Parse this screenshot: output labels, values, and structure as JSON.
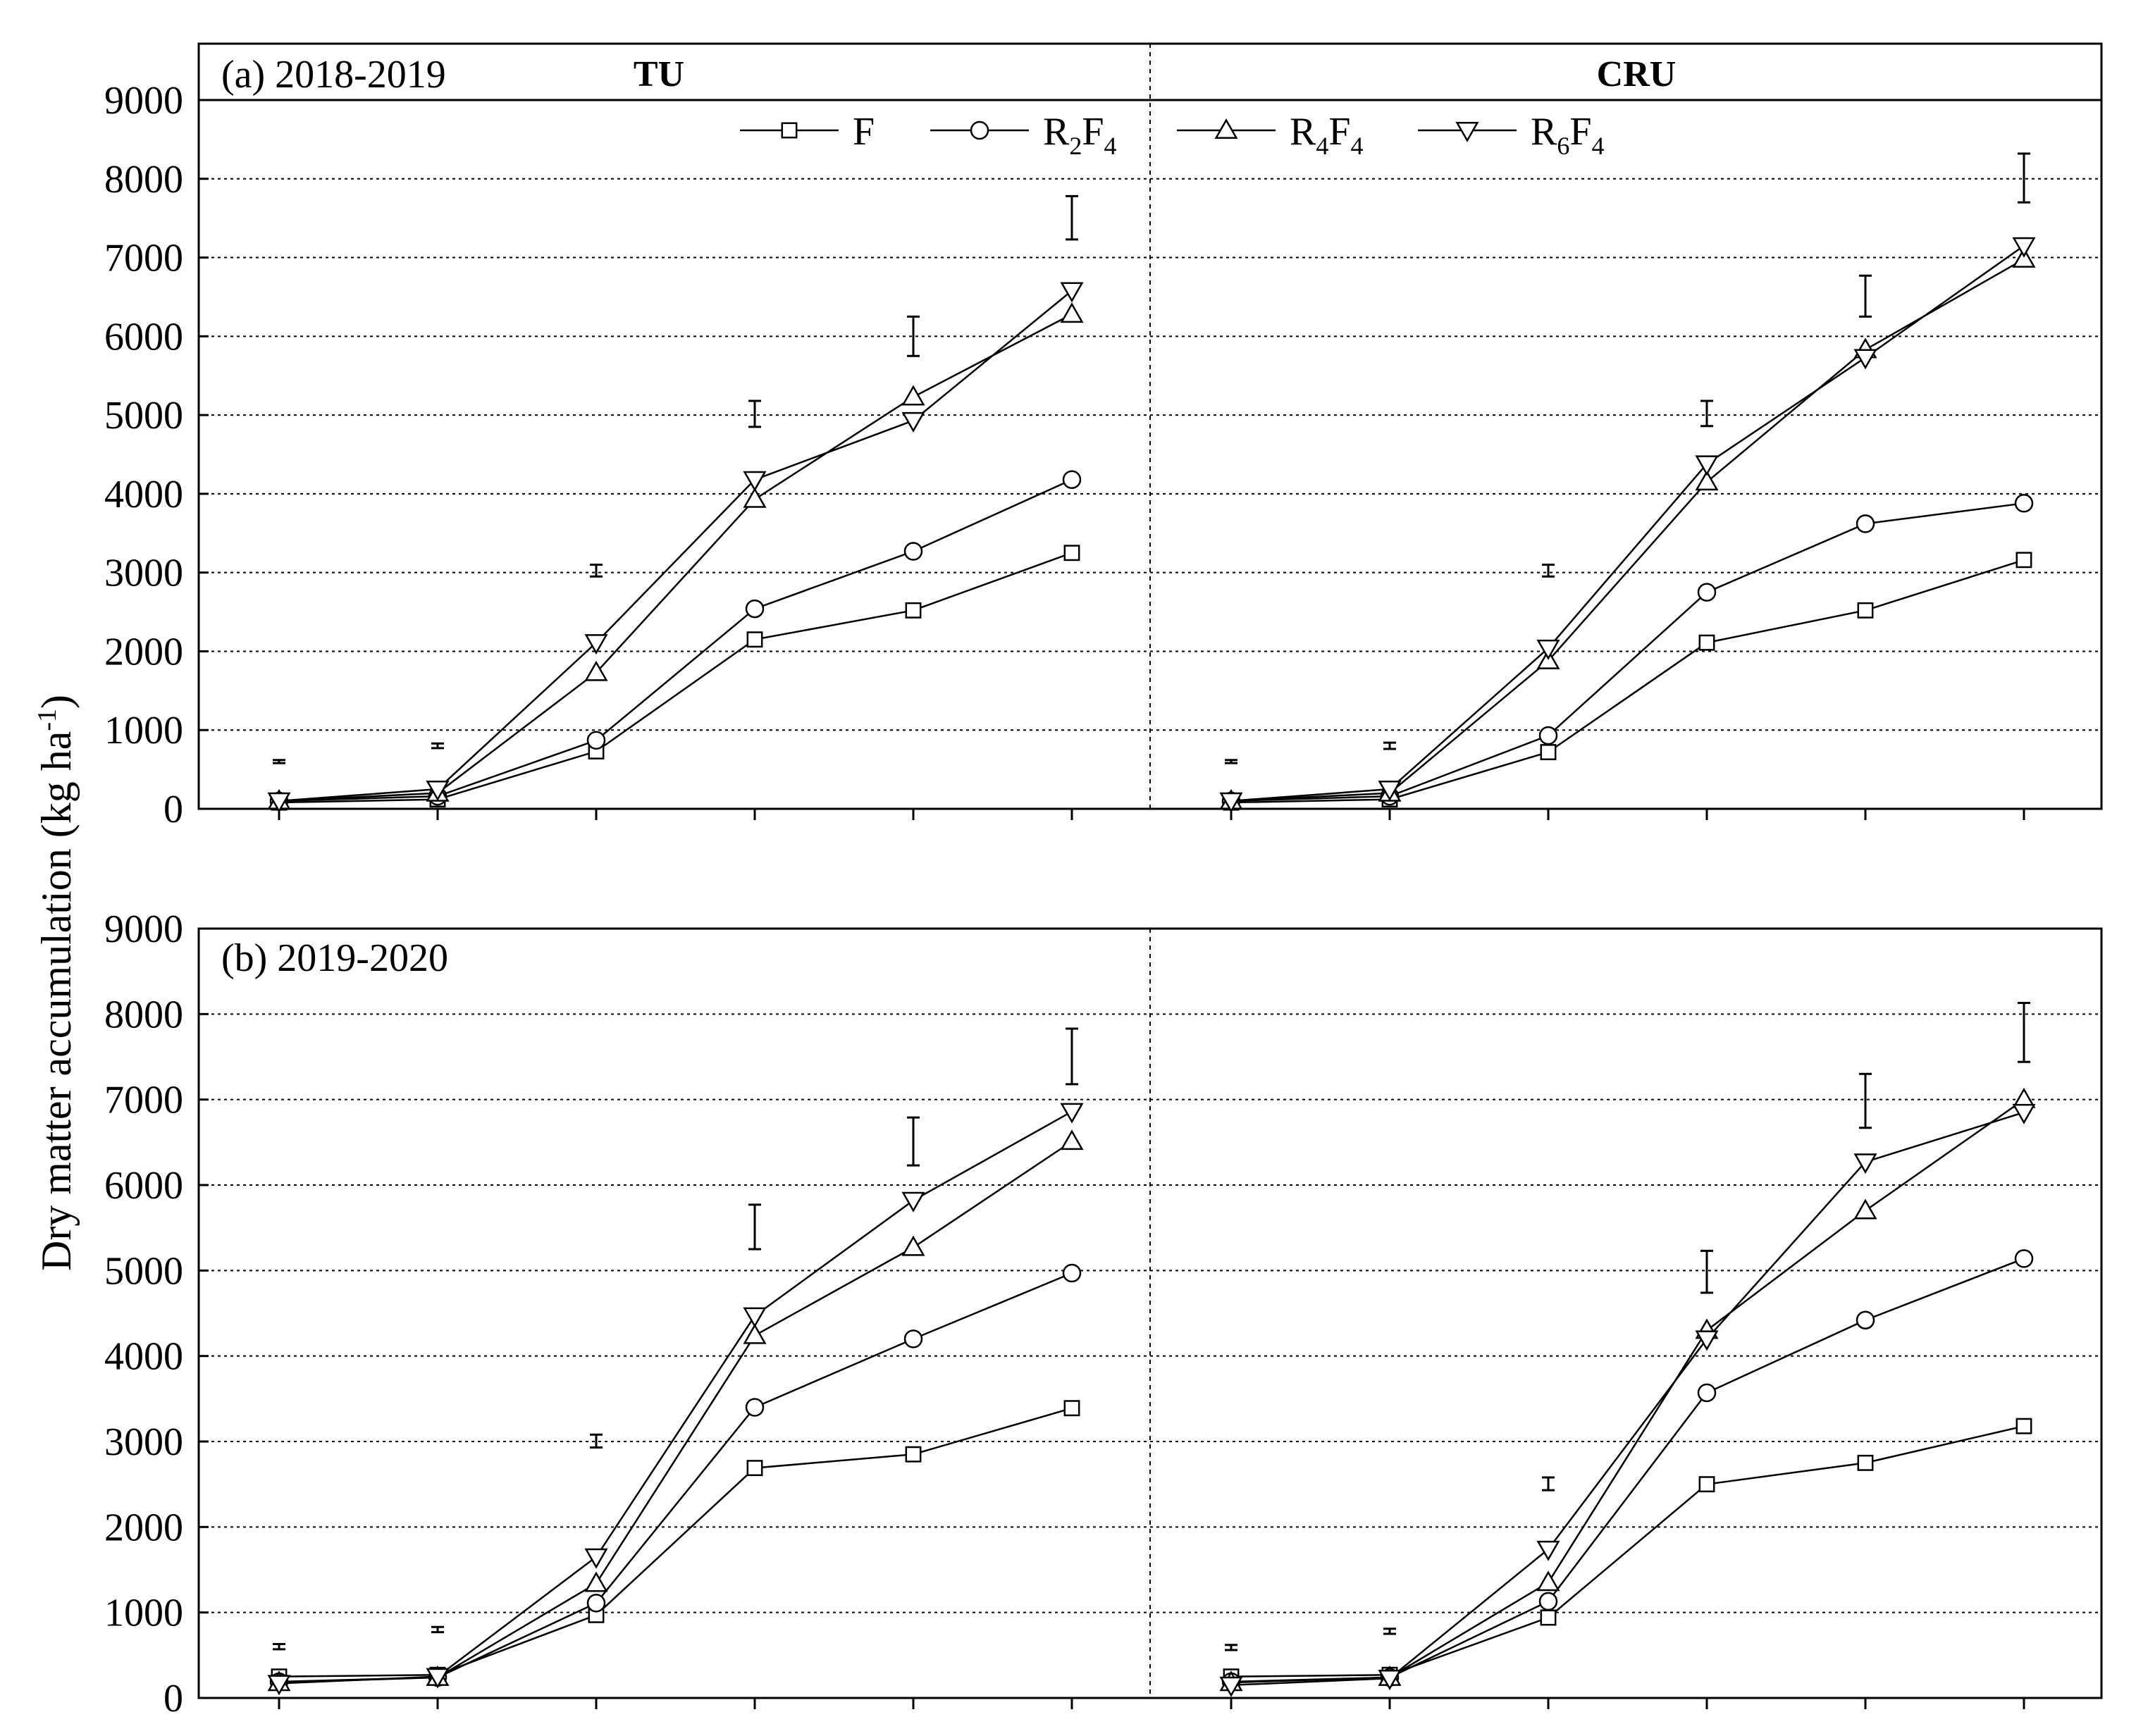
{
  "chart_data": {
    "type": "line",
    "ylabel": "Dry matter accumulation (kg ha",
    "ylabel_sup": "-1",
    "ylabel_close": ")",
    "y_ticks": [
      "0",
      "1000",
      "2000",
      "3000",
      "4000",
      "5000",
      "6000",
      "7000",
      "8000",
      "9000"
    ],
    "ylim": [
      0,
      9000
    ],
    "grid": "horizontal dotted",
    "x_points": 6,
    "legend": [
      {
        "key": "F",
        "base": "F",
        "sub1": "",
        "base2": "",
        "sub2": "",
        "marker": "square"
      },
      {
        "key": "R2F4",
        "base": "R",
        "sub1": "2",
        "base2": "F",
        "sub2": "4",
        "marker": "circle"
      },
      {
        "key": "R4F4",
        "base": "R",
        "sub1": "4",
        "base2": "F",
        "sub2": "4",
        "marker": "triangle-up"
      },
      {
        "key": "R6F4",
        "base": "R",
        "sub1": "6",
        "base2": "F",
        "sub2": "4",
        "marker": "triangle-down"
      }
    ],
    "panels": [
      {
        "label": "(a) 2018-2019",
        "groups": [
          {
            "header": "TU",
            "series": {
              "F": [
                80,
                120,
                730,
                2150,
                2520,
                3250
              ],
              "R2F4": [
                100,
                160,
                870,
                2540,
                3270,
                4180
              ],
              "R4F4": [
                100,
                200,
                1730,
                3930,
                5230,
                6280
              ],
              "R6F4": [
                100,
                250,
                2110,
                4180,
                4930,
                6580
              ]
            },
            "errors": [
              [
                580,
                620
              ],
              [
                770,
                830
              ],
              [
                2950,
                3100
              ],
              [
                4850,
                5180
              ],
              [
                5750,
                6250
              ],
              [
                7230,
                7780
              ]
            ]
          },
          {
            "header": "CRU",
            "series": {
              "F": [
                80,
                120,
                720,
                2110,
                2520,
                3160
              ],
              "R2F4": [
                100,
                160,
                930,
                2750,
                3620,
                3880
              ],
              "R4F4": [
                100,
                200,
                1880,
                4150,
                5830,
                6980
              ],
              "R6F4": [
                100,
                250,
                2040,
                4380,
                5730,
                7150
              ]
            },
            "errors": [
              [
                580,
                620
              ],
              [
                760,
                840
              ],
              [
                2950,
                3100
              ],
              [
                4860,
                5180
              ],
              [
                6250,
                6770
              ],
              [
                7700,
                8320
              ]
            ]
          }
        ]
      },
      {
        "label": "(b) 2019-2020",
        "groups": [
          {
            "header": "",
            "series": {
              "F": [
                250,
                270,
                970,
                2690,
                2850,
                3390
              ],
              "R2F4": [
                190,
                240,
                1110,
                3400,
                4200,
                4970
              ],
              "R4F4": [
                180,
                240,
                1340,
                4240,
                5270,
                6510
              ],
              "R6F4": [
                170,
                250,
                1650,
                4470,
                5820,
                6860
              ]
            },
            "errors": [
              [
                570,
                630
              ],
              [
                770,
                830
              ],
              [
                2930,
                3080
              ],
              [
                5250,
                5770
              ],
              [
                6230,
                6790
              ],
              [
                7180,
                7830
              ]
            ]
          },
          {
            "header": "",
            "series": {
              "F": [
                250,
                270,
                940,
                2500,
                2750,
                3180
              ],
              "R2F4": [
                190,
                240,
                1130,
                3570,
                4420,
                5140
              ],
              "R4F4": [
                180,
                240,
                1350,
                4300,
                5700,
                7000
              ],
              "R6F4": [
                150,
                230,
                1740,
                4200,
                6270,
                6850
              ]
            },
            "errors": [
              [
                560,
                620
              ],
              [
                750,
                810
              ],
              [
                2430,
                2580
              ],
              [
                4740,
                5230
              ],
              [
                6670,
                7300
              ],
              [
                7440,
                8130
              ]
            ]
          }
        ]
      }
    ]
  }
}
